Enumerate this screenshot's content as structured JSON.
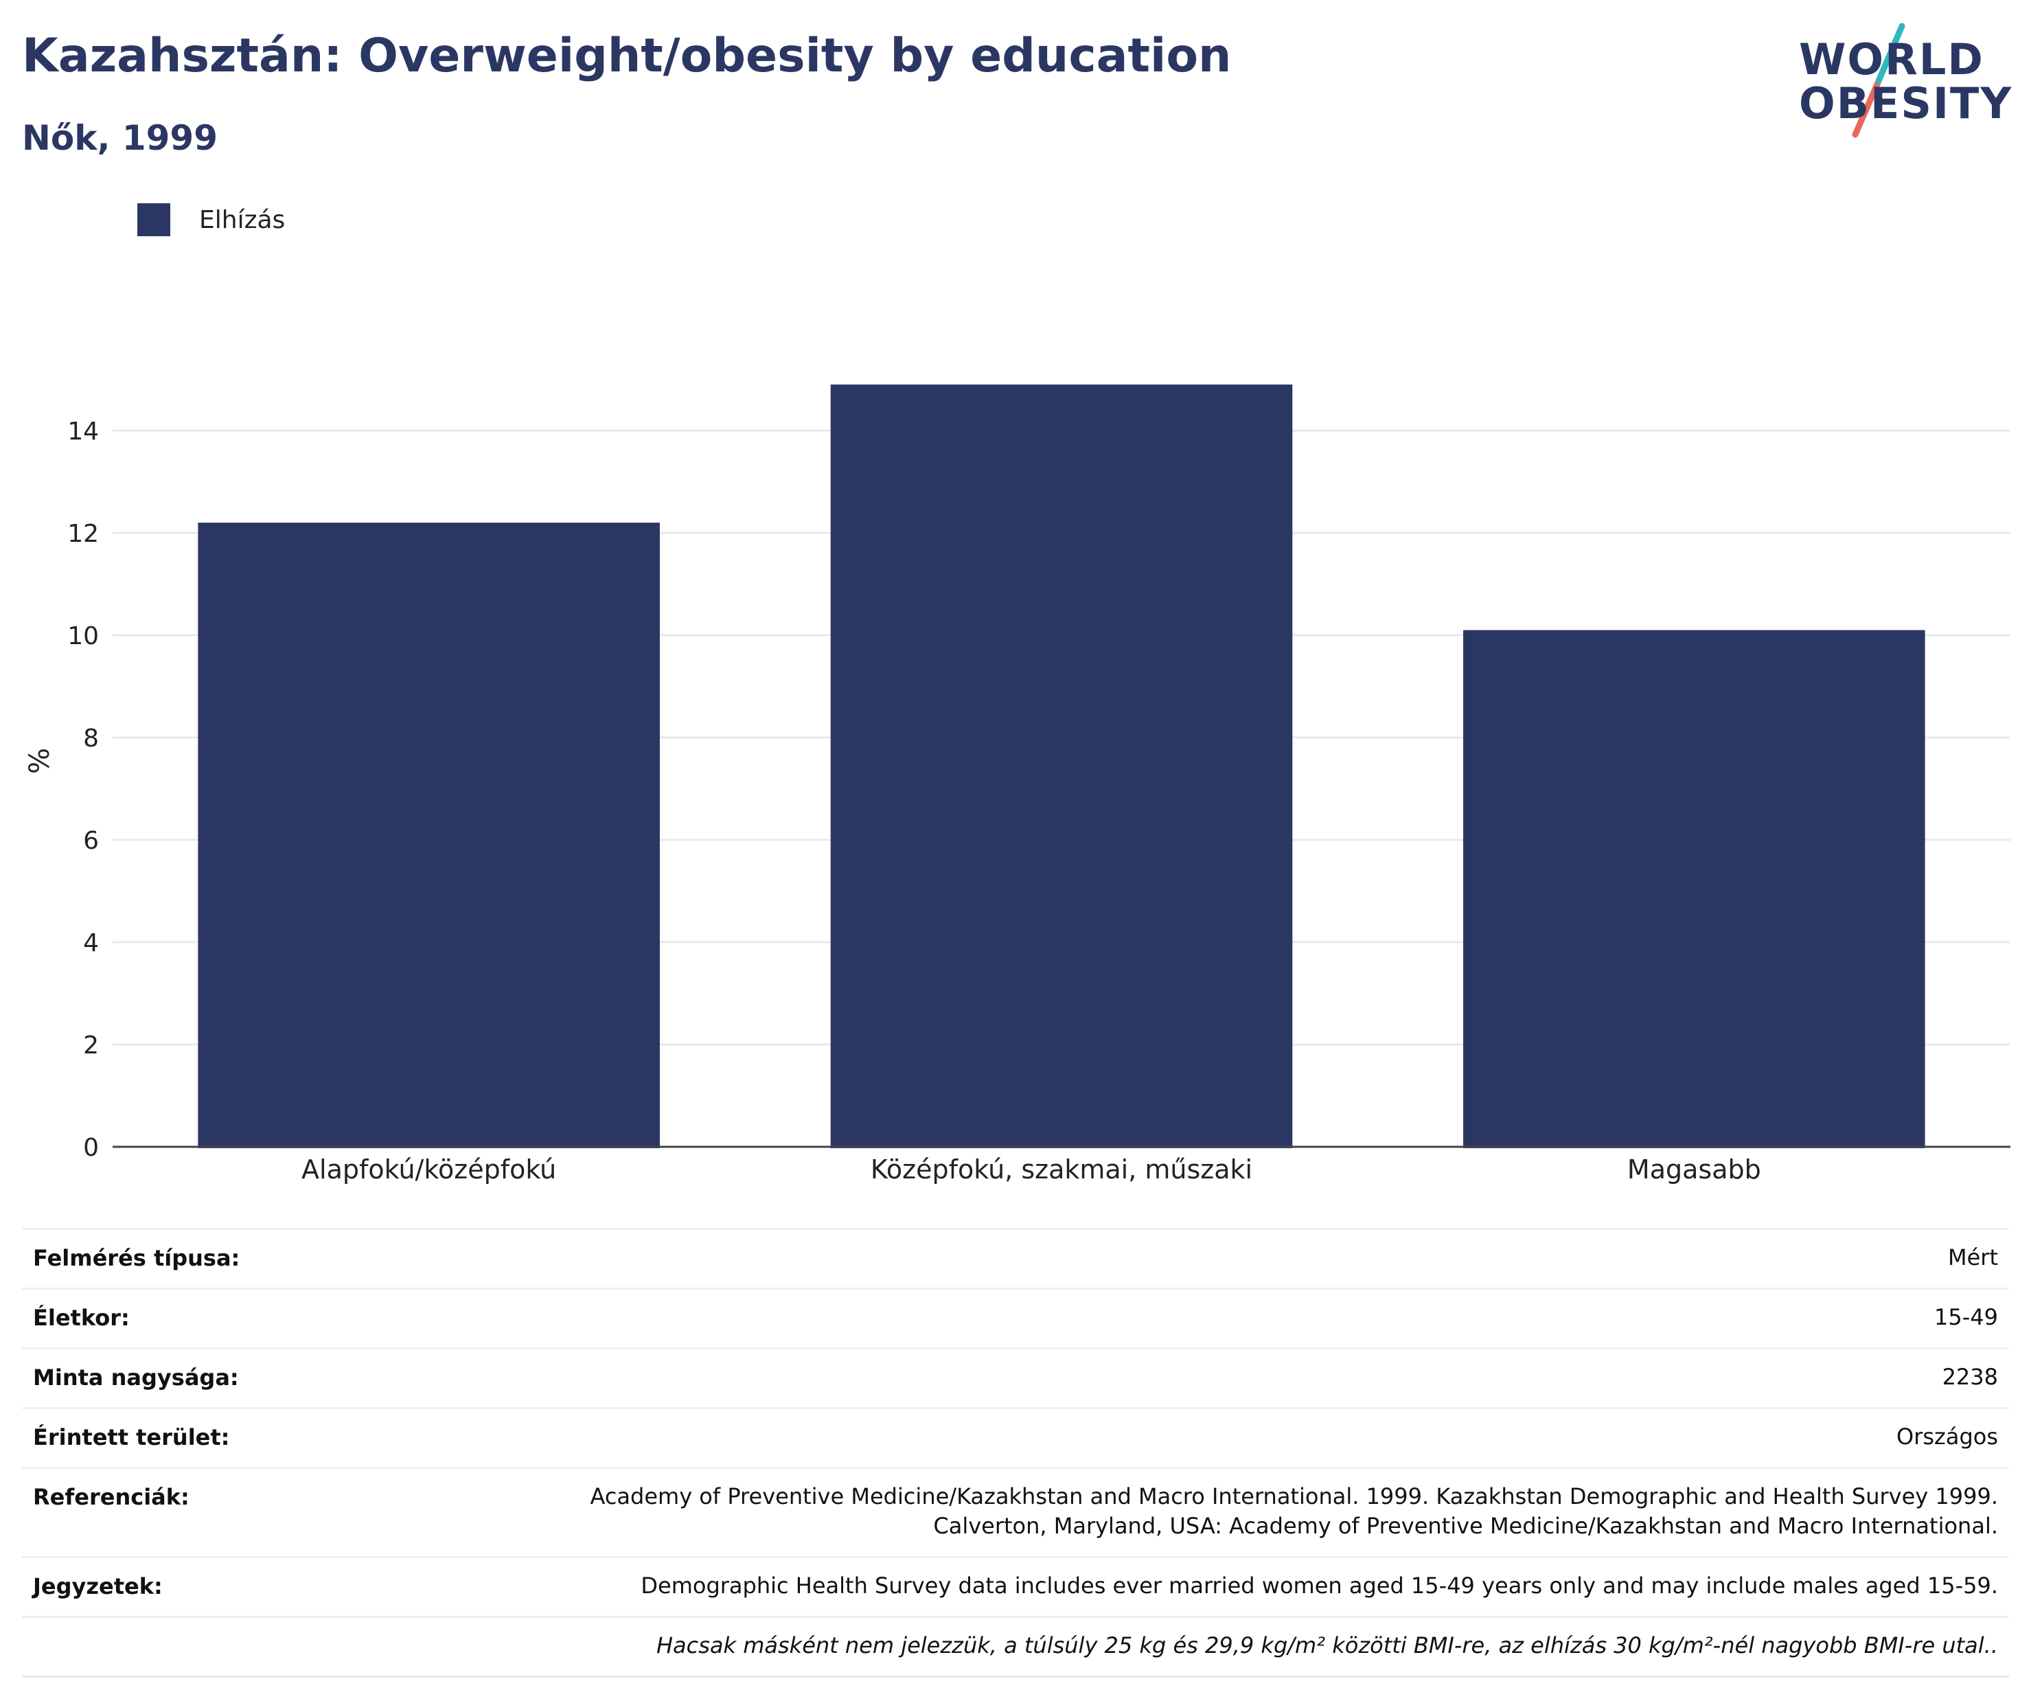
{
  "header": {
    "title": "Kazahsztán: Overweight/obesity by education",
    "subtitle": "Nők, 1999"
  },
  "logo": {
    "line1": "WORLD",
    "line2": "OBESITY",
    "colors": {
      "text": "#2b3763",
      "slash_teal": "#2fb8c0",
      "slash_coral": "#e9685a"
    }
  },
  "colors": {
    "bar": "#2b3763",
    "grid": "#e6e8ec",
    "axis": "#444444"
  },
  "chart_data": {
    "type": "bar",
    "categories": [
      "Alapfokú/középfokú",
      "Középfokú, szakmai, műszaki",
      "Magasabb"
    ],
    "series": [
      {
        "name": "Elhízás",
        "values": [
          12.2,
          14.9,
          10.1
        ]
      }
    ],
    "xlabel": "",
    "ylabel": "%",
    "ylim": [
      0,
      16
    ],
    "yticks": [
      0,
      2,
      4,
      6,
      8,
      10,
      12,
      14
    ],
    "grid": true,
    "legend_position": "top-left"
  },
  "metadata": {
    "rows": [
      {
        "label": "Felmérés típusa:",
        "value": [
          "Mért"
        ]
      },
      {
        "label": "Életkor:",
        "value": [
          "15-49"
        ]
      },
      {
        "label": "Minta nagysága:",
        "value": [
          "2238"
        ]
      },
      {
        "label": "Érintett terület:",
        "value": [
          "Országos"
        ]
      },
      {
        "label": "Referenciák:",
        "value": [
          "Academy of Preventive Medicine/Kazakhstan and Macro International. 1999. Kazakhstan Demographic and Health Survey 1999.",
          "Calverton, Maryland, USA: Academy of Preventive Medicine/Kazakhstan and Macro International."
        ]
      },
      {
        "label": "Jegyzetek:",
        "value": [
          "Demographic Health Survey data includes ever married women aged 15-49 years only and may include males aged 15-59."
        ]
      }
    ],
    "note": "Hacsak másként nem jelezzük, a túlsúly 25 kg és 29,9 kg/m² közötti BMI-re, az elhízás 30 kg/m²-nél nagyobb BMI-re utal.."
  }
}
